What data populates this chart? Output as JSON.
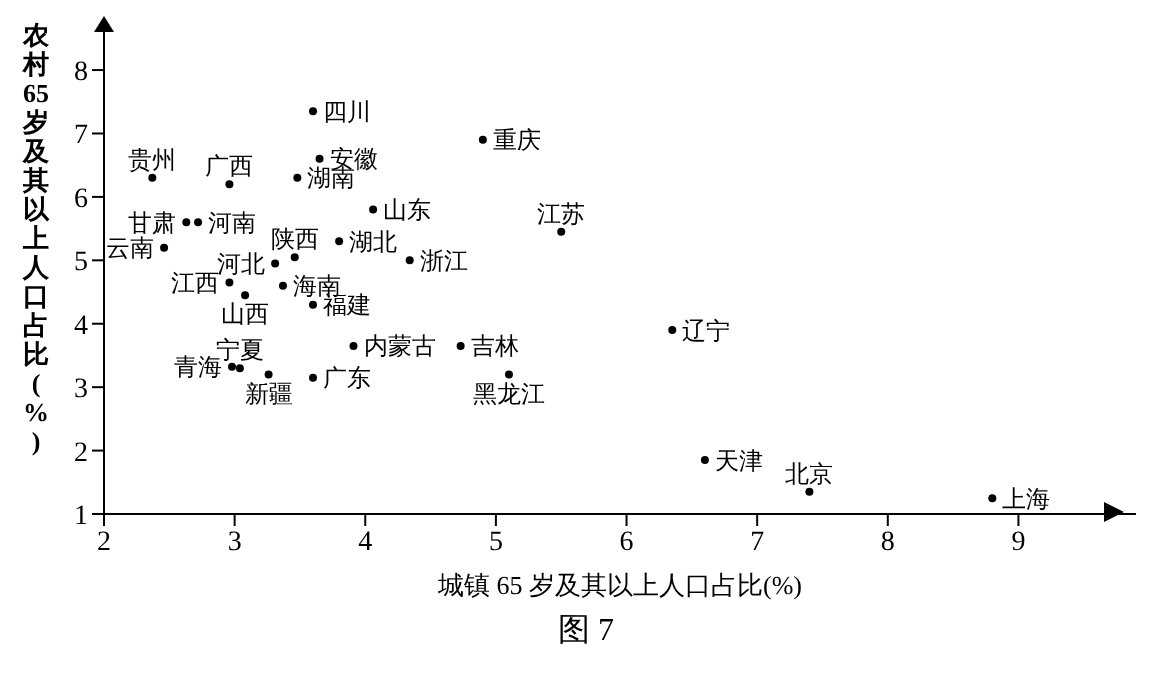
{
  "chart_data": {
    "type": "scatter",
    "xlabel": "城镇 65 岁及其以上人口占比(%)",
    "ylabel": "农村65岁及其以上人口占比(%)",
    "x": [
      3.6,
      4.9,
      2.37,
      2.96,
      3.65,
      3.48,
      4.06,
      2.63,
      2.72,
      5.5,
      3.8,
      3.46,
      3.31,
      4.34,
      2.46,
      2.96,
      3.08,
      3.37,
      3.6,
      3.91,
      4.73,
      5.1,
      3.04,
      2.98,
      3.26,
      3.6,
      6.35,
      6.6,
      7.4,
      8.8
    ],
    "series": [
      {
        "color": "#000000",
        "values": [
          7.35,
          6.9,
          6.3,
          6.2,
          6.6,
          6.3,
          5.8,
          5.6,
          5.6,
          5.45,
          5.3,
          5.05,
          4.95,
          5.0,
          5.2,
          4.65,
          4.45,
          4.6,
          4.3,
          3.65,
          3.65,
          3.2,
          3.3,
          3.32,
          3.2,
          3.15,
          3.9,
          1.85,
          1.35,
          1.25
        ]
      }
    ],
    "annotations": [
      {
        "text": "四川",
        "x": 3.6,
        "y": 7.35
      },
      {
        "text": "重庆",
        "x": 4.9,
        "y": 6.9
      },
      {
        "text": "贵州",
        "x": 2.37,
        "y": 6.3
      },
      {
        "text": "广西",
        "x": 2.96,
        "y": 6.2
      },
      {
        "text": "安徽",
        "x": 3.65,
        "y": 6.6
      },
      {
        "text": "湖南",
        "x": 3.48,
        "y": 6.3
      },
      {
        "text": "山东",
        "x": 4.06,
        "y": 5.8
      },
      {
        "text": "甘肃",
        "x": 2.63,
        "y": 5.6
      },
      {
        "text": "河南",
        "x": 2.72,
        "y": 5.6
      },
      {
        "text": "江苏",
        "x": 5.5,
        "y": 5.45
      },
      {
        "text": "湖北",
        "x": 3.8,
        "y": 5.3
      },
      {
        "text": "陕西",
        "x": 3.46,
        "y": 5.05
      },
      {
        "text": "河北",
        "x": 3.31,
        "y": 4.95
      },
      {
        "text": "浙江",
        "x": 4.34,
        "y": 5.0
      },
      {
        "text": "云南",
        "x": 2.46,
        "y": 5.2
      },
      {
        "text": "江西",
        "x": 2.96,
        "y": 4.65
      },
      {
        "text": "山西",
        "x": 3.08,
        "y": 4.45
      },
      {
        "text": "海南",
        "x": 3.37,
        "y": 4.6
      },
      {
        "text": "福建",
        "x": 3.6,
        "y": 4.3
      },
      {
        "text": "内蒙古",
        "x": 3.91,
        "y": 3.65
      },
      {
        "text": "吉林",
        "x": 4.73,
        "y": 3.65
      },
      {
        "text": "黑龙江",
        "x": 5.1,
        "y": 3.2
      },
      {
        "text": "宁夏",
        "x": 3.04,
        "y": 3.3
      },
      {
        "text": "青海",
        "x": 2.98,
        "y": 3.32
      },
      {
        "text": "新疆",
        "x": 3.26,
        "y": 3.2
      },
      {
        "text": "广东",
        "x": 3.6,
        "y": 3.15
      },
      {
        "text": "辽宁",
        "x": 6.35,
        "y": 3.9
      },
      {
        "text": "天津",
        "x": 6.6,
        "y": 1.85
      },
      {
        "text": "北京",
        "x": 7.4,
        "y": 1.35
      },
      {
        "text": "上海",
        "x": 8.8,
        "y": 1.25
      },
      "图 7"
    ],
    "xlim": [
      2,
      9.9
    ],
    "xticks": [
      2,
      3,
      4,
      5,
      6,
      7,
      8,
      9
    ],
    "ylim": [
      1,
      8.6
    ],
    "yticks": [
      1,
      2,
      3,
      4,
      5,
      6,
      7,
      8
    ],
    "marker": "circle"
  }
}
